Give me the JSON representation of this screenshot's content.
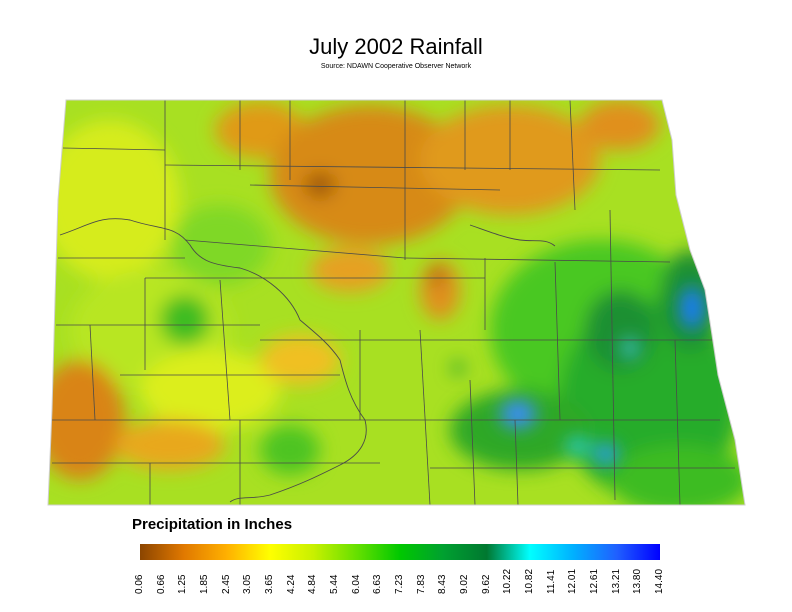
{
  "title": "July 2002 Rainfall",
  "subtitle": "Source: NDAWN Cooperative Observer Network",
  "legend": {
    "title": "Precipitation in Inches",
    "ticks": [
      "0.06",
      "0.66",
      "1.25",
      "1.85",
      "2.45",
      "3.05",
      "3.65",
      "4.24",
      "4.84",
      "5.44",
      "6.04",
      "6.63",
      "7.23",
      "7.83",
      "8.43",
      "9.02",
      "9.62",
      "10.22",
      "10.82",
      "11.41",
      "12.01",
      "12.61",
      "13.21",
      "13.80",
      "14.40"
    ],
    "colors": [
      "#8b4500",
      "#e07800",
      "#ffb000",
      "#ffff00",
      "#c8f000",
      "#66e000",
      "#00c800",
      "#00a030",
      "#007830",
      "#00ffff",
      "#00b0ff",
      "#2060ff",
      "#0000ff"
    ]
  },
  "colors": {
    "dry": "#d07a10",
    "moderate": "#cfe81a",
    "wet": "#3cc81e",
    "very_wet": "#1e8a2e",
    "extreme": "#2a8cff",
    "county_line": "#4a4a4a"
  }
}
